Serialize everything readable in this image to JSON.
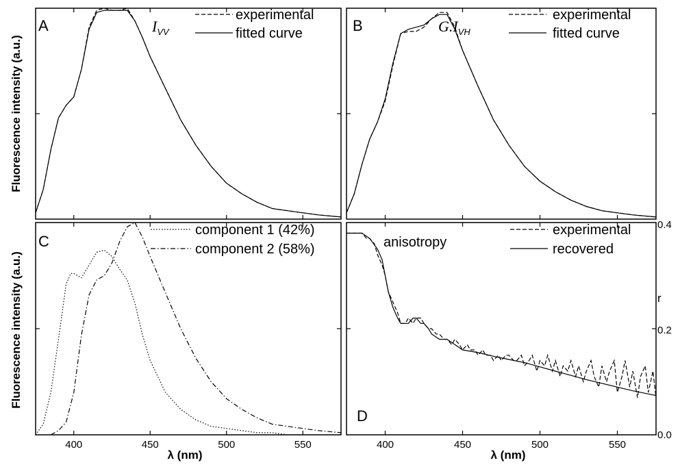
{
  "y_axis_label": "Fluorescence intensity (a.u.)",
  "x_axis_label": "λ (nm)",
  "x_ticks": [
    "400",
    "450",
    "500",
    "550"
  ],
  "r_axis_label": "r",
  "r_ticks": [
    "0.4",
    "0.2",
    "0.0"
  ],
  "chart_data": [
    {
      "panel": "A",
      "type": "line",
      "title_math": "I",
      "title_sub": "VV",
      "xlim": [
        375,
        575
      ],
      "ylim": [
        0,
        1.0
      ],
      "series": [
        {
          "name": "experimental",
          "style": "dashed",
          "x": [
            375,
            380,
            385,
            390,
            395,
            400,
            405,
            410,
            415,
            420,
            425,
            430,
            435,
            440,
            445,
            450,
            460,
            470,
            480,
            490,
            500,
            510,
            520,
            530,
            540,
            550,
            560,
            575
          ],
          "y": [
            0.03,
            0.14,
            0.33,
            0.48,
            0.54,
            0.58,
            0.71,
            0.91,
            0.99,
            1.0,
            0.99,
            0.99,
            1.0,
            0.94,
            0.86,
            0.77,
            0.62,
            0.47,
            0.35,
            0.25,
            0.17,
            0.12,
            0.08,
            0.05,
            0.04,
            0.03,
            0.02,
            0.01
          ]
        },
        {
          "name": "fitted curve",
          "style": "solid",
          "x": [
            375,
            380,
            385,
            390,
            395,
            400,
            405,
            410,
            415,
            420,
            425,
            430,
            435,
            440,
            445,
            450,
            460,
            470,
            480,
            490,
            500,
            510,
            520,
            530,
            540,
            550,
            560,
            575
          ],
          "y": [
            0.03,
            0.14,
            0.33,
            0.48,
            0.54,
            0.58,
            0.71,
            0.9,
            0.98,
            0.99,
            0.99,
            0.99,
            0.99,
            0.94,
            0.86,
            0.77,
            0.62,
            0.47,
            0.35,
            0.25,
            0.17,
            0.12,
            0.08,
            0.05,
            0.04,
            0.03,
            0.02,
            0.01
          ]
        }
      ]
    },
    {
      "panel": "B",
      "type": "line",
      "title_math": "G.I",
      "title_sub": "VH",
      "xlim": [
        375,
        575
      ],
      "ylim": [
        0,
        1.0
      ],
      "series": [
        {
          "name": "experimental",
          "style": "dashed",
          "x": [
            375,
            380,
            385,
            390,
            395,
            400,
            405,
            410,
            415,
            420,
            425,
            430,
            435,
            440,
            445,
            450,
            460,
            470,
            480,
            490,
            500,
            510,
            520,
            530,
            540,
            550,
            560,
            575
          ],
          "y": [
            0.03,
            0.12,
            0.26,
            0.38,
            0.46,
            0.56,
            0.73,
            0.88,
            0.89,
            0.89,
            0.91,
            0.95,
            0.98,
            0.98,
            0.91,
            0.8,
            0.63,
            0.47,
            0.35,
            0.25,
            0.18,
            0.13,
            0.09,
            0.06,
            0.04,
            0.03,
            0.02,
            0.01
          ]
        },
        {
          "name": "fitted curve",
          "style": "solid",
          "x": [
            375,
            380,
            385,
            390,
            395,
            400,
            405,
            410,
            415,
            420,
            425,
            430,
            435,
            440,
            445,
            450,
            460,
            470,
            480,
            490,
            500,
            510,
            520,
            530,
            540,
            550,
            560,
            575
          ],
          "y": [
            0.03,
            0.12,
            0.26,
            0.38,
            0.46,
            0.57,
            0.74,
            0.88,
            0.9,
            0.91,
            0.92,
            0.95,
            0.97,
            0.97,
            0.9,
            0.8,
            0.63,
            0.47,
            0.35,
            0.25,
            0.18,
            0.13,
            0.09,
            0.06,
            0.04,
            0.03,
            0.02,
            0.01
          ]
        }
      ]
    },
    {
      "panel": "C",
      "type": "line",
      "xlim": [
        375,
        575
      ],
      "ylim": [
        0,
        1.0
      ],
      "series": [
        {
          "name": "component 1 (42%)",
          "style": "dotted",
          "x": [
            375,
            380,
            385,
            390,
            395,
            398,
            400,
            405,
            410,
            415,
            420,
            425,
            430,
            435,
            440,
            445,
            450,
            460,
            470,
            480,
            490,
            500,
            510,
            520,
            530,
            540,
            550,
            560,
            575
          ],
          "y": [
            0.0,
            0.05,
            0.2,
            0.45,
            0.71,
            0.76,
            0.76,
            0.74,
            0.8,
            0.86,
            0.87,
            0.84,
            0.78,
            0.73,
            0.62,
            0.47,
            0.35,
            0.2,
            0.12,
            0.07,
            0.04,
            0.03,
            0.02,
            0.01,
            0.01,
            0.0,
            0.0,
            0.0,
            0.0
          ]
        },
        {
          "name": "component 2 (58%)",
          "style": "dashdot",
          "x": [
            385,
            390,
            395,
            400,
            405,
            410,
            415,
            420,
            425,
            430,
            435,
            440,
            445,
            450,
            460,
            470,
            480,
            490,
            500,
            510,
            520,
            530,
            540,
            550,
            560,
            575
          ],
          "y": [
            0.0,
            0.02,
            0.06,
            0.2,
            0.47,
            0.66,
            0.73,
            0.75,
            0.81,
            0.91,
            0.98,
            1.0,
            0.93,
            0.84,
            0.67,
            0.5,
            0.36,
            0.25,
            0.17,
            0.12,
            0.08,
            0.05,
            0.04,
            0.03,
            0.02,
            0.01
          ]
        }
      ]
    },
    {
      "panel": "D",
      "type": "line",
      "annotation": "anisotropy",
      "xlim": [
        375,
        575
      ],
      "ylim": [
        0.0,
        0.4
      ],
      "ylabel": "r",
      "series": [
        {
          "name": "experimental",
          "style": "dashed",
          "x": [
            375,
            380,
            385,
            388,
            390,
            393,
            395,
            398,
            400,
            402,
            405,
            408,
            410,
            413,
            415,
            418,
            420,
            423,
            425,
            428,
            430,
            433,
            435,
            438,
            440,
            443,
            445,
            448,
            450,
            453,
            455,
            458,
            460,
            463,
            465,
            468,
            470,
            473,
            475,
            478,
            480,
            483,
            485,
            488,
            490,
            493,
            495,
            498,
            500,
            503,
            505,
            508,
            510,
            513,
            515,
            518,
            520,
            523,
            525,
            528,
            530,
            533,
            535,
            538,
            540,
            543,
            545,
            548,
            550,
            553,
            555,
            558,
            560,
            563,
            565,
            568,
            570,
            573,
            575
          ],
          "y": [
            0.38,
            0.38,
            0.38,
            0.37,
            0.37,
            0.36,
            0.34,
            0.32,
            0.3,
            0.27,
            0.25,
            0.23,
            0.21,
            0.21,
            0.22,
            0.21,
            0.22,
            0.22,
            0.21,
            0.2,
            0.2,
            0.19,
            0.19,
            0.18,
            0.18,
            0.17,
            0.18,
            0.17,
            0.16,
            0.17,
            0.16,
            0.16,
            0.15,
            0.16,
            0.15,
            0.15,
            0.14,
            0.15,
            0.14,
            0.15,
            0.15,
            0.14,
            0.14,
            0.15,
            0.13,
            0.14,
            0.15,
            0.12,
            0.14,
            0.13,
            0.15,
            0.12,
            0.14,
            0.11,
            0.13,
            0.12,
            0.14,
            0.11,
            0.13,
            0.1,
            0.12,
            0.14,
            0.11,
            0.09,
            0.13,
            0.1,
            0.12,
            0.14,
            0.08,
            0.11,
            0.14,
            0.09,
            0.12,
            0.07,
            0.11,
            0.13,
            0.08,
            0.12,
            0.07
          ]
        },
        {
          "name": "recovered",
          "style": "solid",
          "x": [
            375,
            380,
            385,
            390,
            395,
            398,
            400,
            402,
            405,
            408,
            410,
            413,
            415,
            418,
            420,
            423,
            425,
            428,
            430,
            435,
            440,
            445,
            450,
            460,
            470,
            480,
            490,
            500,
            510,
            520,
            530,
            540,
            550,
            560,
            570,
            575
          ],
          "y": [
            0.38,
            0.38,
            0.38,
            0.37,
            0.35,
            0.33,
            0.3,
            0.27,
            0.24,
            0.22,
            0.21,
            0.21,
            0.21,
            0.22,
            0.22,
            0.21,
            0.21,
            0.2,
            0.19,
            0.18,
            0.18,
            0.17,
            0.16,
            0.155,
            0.148,
            0.142,
            0.136,
            0.128,
            0.12,
            0.112,
            0.104,
            0.097,
            0.09,
            0.083,
            0.077,
            0.074
          ]
        }
      ]
    }
  ]
}
